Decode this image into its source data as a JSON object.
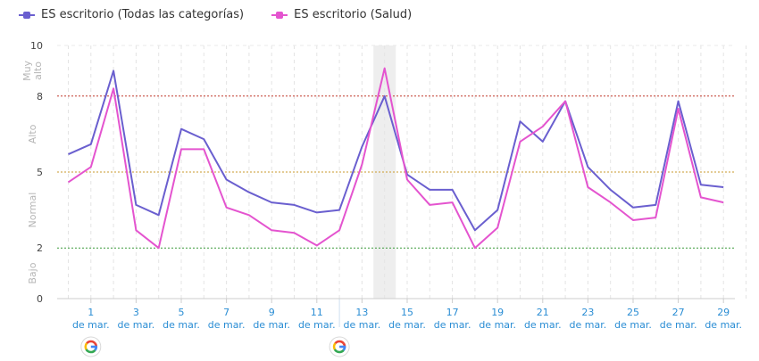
{
  "legend": [
    {
      "label": "ES escritorio (Todas las categorías)",
      "color": "#6a5fcf"
    },
    {
      "label": "ES escritorio (Salud)",
      "color": "#e454cf"
    }
  ],
  "chart_data": {
    "type": "line",
    "x": [
      0,
      1,
      2,
      3,
      4,
      5,
      6,
      7,
      8,
      9,
      10,
      11,
      12,
      13,
      14,
      15,
      16,
      17,
      18,
      19,
      20,
      21,
      22,
      23,
      24,
      25,
      26,
      27,
      28,
      29,
      30
    ],
    "x_ticks": [
      {
        "pos": 1,
        "label": [
          "1",
          "de mar."
        ]
      },
      {
        "pos": 3,
        "label": [
          "3",
          "de mar."
        ]
      },
      {
        "pos": 5,
        "label": [
          "5",
          "de mar."
        ]
      },
      {
        "pos": 7,
        "label": [
          "7",
          "de mar."
        ]
      },
      {
        "pos": 9,
        "label": [
          "9",
          "de mar."
        ]
      },
      {
        "pos": 11,
        "label": [
          "11",
          "de mar."
        ]
      },
      {
        "pos": 13,
        "label": [
          "13",
          "de mar."
        ]
      },
      {
        "pos": 15,
        "label": [
          "15",
          "de mar."
        ]
      },
      {
        "pos": 17,
        "label": [
          "17",
          "de mar."
        ]
      },
      {
        "pos": 19,
        "label": [
          "19",
          "de mar."
        ]
      },
      {
        "pos": 21,
        "label": [
          "21",
          "de mar."
        ]
      },
      {
        "pos": 23,
        "label": [
          "23",
          "de mar."
        ]
      },
      {
        "pos": 25,
        "label": [
          "25",
          "de mar."
        ]
      },
      {
        "pos": 27,
        "label": [
          "27",
          "de mar."
        ]
      },
      {
        "pos": 29,
        "label": [
          "29",
          "de mar."
        ]
      }
    ],
    "series": [
      {
        "name": "ES escritorio (Todas las categorías)",
        "color": "#6a5fcf",
        "values": [
          5.7,
          6.1,
          9.0,
          3.7,
          3.3,
          6.7,
          6.3,
          4.7,
          4.2,
          3.8,
          3.7,
          3.4,
          3.5,
          6.0,
          8.0,
          4.9,
          4.3,
          4.3,
          2.7,
          3.5,
          7.0,
          6.2,
          7.8,
          5.2,
          4.3,
          3.6,
          3.7,
          7.8,
          4.5,
          4.4,
          null
        ]
      },
      {
        "name": "ES escritorio (Salud)",
        "color": "#e454cf",
        "values": [
          4.6,
          5.2,
          8.3,
          2.7,
          2.0,
          5.9,
          5.9,
          3.6,
          3.3,
          2.7,
          2.6,
          2.1,
          2.7,
          5.3,
          9.1,
          4.7,
          3.7,
          3.8,
          2.0,
          2.8,
          6.2,
          6.8,
          7.8,
          4.4,
          3.8,
          3.1,
          3.2,
          7.5,
          4.0,
          3.8,
          null
        ]
      }
    ],
    "ylim": [
      0,
      10
    ],
    "y_ticks": [
      0,
      2,
      5,
      8,
      10
    ],
    "ref_lines": [
      {
        "y": 8,
        "color": "#c0392b"
      },
      {
        "y": 5,
        "color": "#c99a2e"
      },
      {
        "y": 2,
        "color": "#3a9a3a"
      }
    ],
    "bands": [
      {
        "label": "Muy alto",
        "lines": [
          "Muy",
          "alto"
        ],
        "from": 8,
        "to": 10
      },
      {
        "label": "Alto",
        "lines": [
          "Alto"
        ],
        "from": 5,
        "to": 8
      },
      {
        "label": "Normal",
        "lines": [
          "Normal"
        ],
        "from": 2,
        "to": 5
      },
      {
        "label": "Bajo",
        "lines": [
          "Bajo"
        ],
        "from": 0,
        "to": 2
      }
    ],
    "highlight_x": 14,
    "marker_lines": [
      12
    ],
    "google_markers": [
      1,
      12
    ],
    "grid": true
  }
}
